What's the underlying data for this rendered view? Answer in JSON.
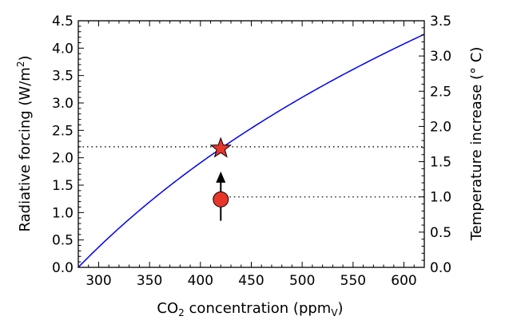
{
  "chart_data": {
    "type": "line",
    "xlabel": "CO₂ concentration (ppmᵥ)",
    "xlabel_parts": {
      "prefix": "CO",
      "sub1": "2",
      "middle": " concentration (ppm",
      "sub2": "V",
      "suffix": ")"
    },
    "ylabel": "Radiative forcing (W/m²)",
    "ylabel_parts": {
      "prefix": "Radiative forcing (W/m",
      "sup": "2",
      "suffix": ")"
    },
    "y2label": "Temperature increase (° C)",
    "xlim": [
      280,
      620
    ],
    "ylim": [
      0,
      4.5
    ],
    "y2lim": [
      0,
      3.5
    ],
    "x_ticks": [
      "300",
      "350",
      "400",
      "450",
      "500",
      "550",
      "600"
    ],
    "y_ticks": [
      "0.0",
      "0.5",
      "1.0",
      "1.5",
      "2.0",
      "2.5",
      "3.0",
      "3.5",
      "4.0",
      "4.5"
    ],
    "y2_ticks": [
      "0.0",
      "0.5",
      "1.0",
      "1.5",
      "2.0",
      "2.5",
      "3.0",
      "3.5"
    ],
    "grid": false,
    "series": [
      {
        "color": "#0000ee",
        "formula": "5.35*ln(C/280)",
        "x": [
          280,
          300,
          320,
          340,
          360,
          380,
          400,
          420,
          440,
          460,
          480,
          500,
          520,
          540,
          560,
          580,
          600,
          620
        ],
        "y": [
          0.0,
          0.37,
          0.71,
          1.04,
          1.34,
          1.63,
          1.91,
          2.17,
          2.42,
          2.66,
          2.88,
          3.1,
          3.31,
          3.51,
          3.71,
          3.9,
          4.08,
          4.25
        ]
      }
    ],
    "annotations": {
      "star": {
        "x": 420,
        "y": 2.17,
        "color": "#e8352c"
      },
      "circle": {
        "x": 420,
        "y": 1.24,
        "color": "#e8352c"
      },
      "arrow": {
        "x": 420,
        "y_from": 0.85,
        "y_to": 1.75,
        "color": "#000000"
      },
      "hline_upper": {
        "y": 2.2,
        "x_from": 280,
        "x_to": 620
      },
      "hline_lower": {
        "y2": 1.0,
        "x_from": 420,
        "x_to": 620
      }
    }
  }
}
